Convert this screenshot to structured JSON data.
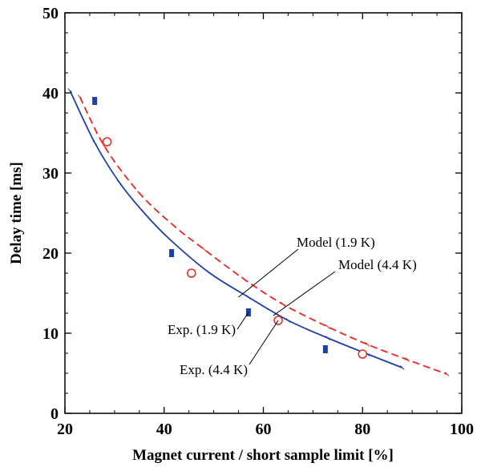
{
  "chart_data": {
    "type": "scatter",
    "title": "",
    "xlabel": "Magnet current / short sample limit [%]",
    "ylabel": "Delay time [ms]",
    "xlim": [
      20,
      100
    ],
    "ylim": [
      0,
      50
    ],
    "xticks": [
      20,
      40,
      60,
      80,
      100
    ],
    "yticks": [
      0,
      10,
      20,
      30,
      40,
      50
    ],
    "grid": false,
    "colors": {
      "model_19": "#1f3fa8",
      "model_44": "#e8271d",
      "exp_19": "#1f3fa8",
      "exp_44": "#e8271d"
    },
    "series": [
      {
        "name": "Model (1.9 K)",
        "kind": "line",
        "style": "solid",
        "color_key": "model_19",
        "x": [
          21,
          26,
          31,
          36,
          41,
          49,
          57,
          65,
          73,
          81,
          88
        ],
        "y": [
          40.3,
          33.8,
          28.8,
          25.0,
          21.8,
          17.6,
          14.5,
          11.6,
          9.4,
          7.4,
          5.7
        ]
      },
      {
        "name": "Model (4.4 K)",
        "kind": "line",
        "style": "dashed",
        "color_key": "model_44",
        "x": [
          23,
          28,
          35,
          42,
          48,
          56,
          64,
          73,
          81,
          89,
          97
        ],
        "y": [
          39.5,
          33.3,
          27.5,
          23.4,
          20.5,
          16.8,
          13.6,
          10.8,
          8.6,
          6.7,
          4.9
        ]
      },
      {
        "name": "Exp. (1.9 K)",
        "kind": "marker",
        "marker": "rect",
        "color_key": "exp_19",
        "x": [
          26,
          41.5,
          57,
          72.5
        ],
        "y": [
          39.0,
          20.0,
          12.6,
          8.0
        ]
      },
      {
        "name": "Exp. (4.4 K)",
        "kind": "marker",
        "marker": "circle",
        "color_key": "exp_44",
        "x": [
          28.5,
          45.5,
          63,
          80
        ],
        "y": [
          33.9,
          17.5,
          11.6,
          7.4
        ]
      }
    ],
    "annotations": [
      {
        "text": "Model (1.9 K)",
        "points_to": [
          55,
          14.5
        ]
      },
      {
        "text": "Model (4.4 K)",
        "points_to": [
          62,
          12.2
        ]
      },
      {
        "text": "Exp. (1.9 K)",
        "points_to": [
          57,
          12.6
        ]
      },
      {
        "text": "Exp. (4.4 K)",
        "points_to": [
          63,
          11.6
        ]
      }
    ]
  }
}
